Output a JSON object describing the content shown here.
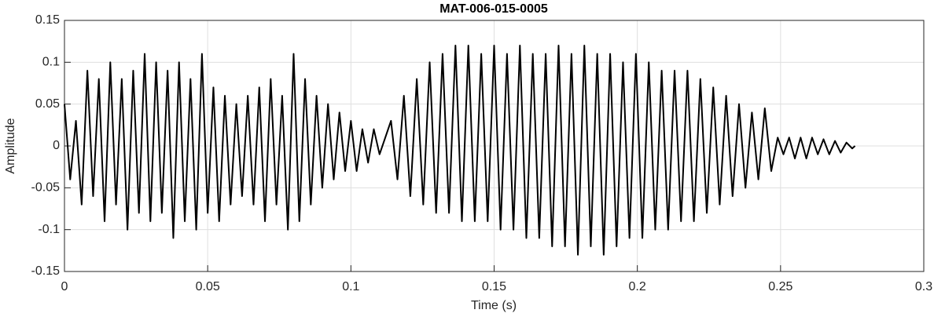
{
  "chart_data": {
    "type": "line",
    "title": "MAT-006-015-0005",
    "x_label": "Time (s)",
    "y_label": "Amplitude",
    "xlim": [
      0,
      0.3
    ],
    "xticks": [
      0,
      0.05,
      0.1,
      0.15,
      0.2,
      0.25,
      0.3
    ],
    "ylim": [
      -0.15,
      0.15
    ],
    "yticks": [
      -0.15,
      -0.1,
      -0.05,
      0,
      0.05,
      0.1,
      0.15
    ],
    "grid": true,
    "x": [
      0,
      0.002,
      0.004,
      0.006,
      0.008,
      0.01,
      0.012,
      0.014,
      0.016,
      0.018,
      0.02,
      0.022,
      0.024,
      0.026,
      0.028,
      0.03,
      0.032,
      0.034,
      0.036,
      0.038,
      0.04,
      0.042,
      0.044,
      0.046,
      0.048,
      0.05,
      0.052,
      0.054,
      0.056,
      0.058,
      0.06,
      0.062,
      0.064,
      0.066,
      0.068,
      0.07,
      0.072,
      0.074,
      0.076,
      0.078,
      0.08,
      0.082,
      0.084,
      0.086,
      0.088,
      0.09,
      0.092,
      0.094,
      0.096,
      0.098,
      0.1,
      0.102,
      0.104,
      0.106,
      0.108,
      0.11,
      0.114,
      0.11625,
      0.1185,
      0.12075,
      0.123,
      0.12525,
      0.1275,
      0.12975,
      0.132,
      0.13425,
      0.1365,
      0.13875,
      0.141,
      0.14325,
      0.1455,
      0.14775,
      0.15,
      0.15225,
      0.1545,
      0.15675,
      0.159,
      0.16125,
      0.1635,
      0.16575,
      0.168,
      0.17025,
      0.1725,
      0.17475,
      0.177,
      0.17925,
      0.1815,
      0.18375,
      0.186,
      0.18825,
      0.1905,
      0.19275,
      0.195,
      0.19725,
      0.1995,
      0.20175,
      0.204,
      0.20625,
      0.2085,
      0.21075,
      0.213,
      0.21525,
      0.2175,
      0.21975,
      0.222,
      0.22425,
      0.2265,
      0.22875,
      0.231,
      0.23325,
      0.2355,
      0.23775,
      0.24,
      0.24225,
      0.2445,
      0.24675,
      0.249,
      0.251,
      0.253,
      0.255,
      0.257,
      0.259,
      0.261,
      0.263,
      0.265,
      0.267,
      0.269,
      0.271,
      0.273,
      0.275,
      0.276
    ],
    "series": [
      {
        "name": "Amplitude",
        "color": "#000000",
        "values": [
          0.05,
          -0.04,
          0.03,
          -0.07,
          0.09,
          -0.06,
          0.08,
          -0.09,
          0.1,
          -0.07,
          0.08,
          -0.1,
          0.09,
          -0.08,
          0.11,
          -0.09,
          0.1,
          -0.08,
          0.09,
          -0.11,
          0.1,
          -0.09,
          0.08,
          -0.1,
          0.11,
          -0.08,
          0.07,
          -0.09,
          0.06,
          -0.07,
          0.05,
          -0.06,
          0.06,
          -0.07,
          0.07,
          -0.09,
          0.08,
          -0.07,
          0.06,
          -0.1,
          0.11,
          -0.09,
          0.08,
          -0.07,
          0.06,
          -0.05,
          0.05,
          -0.04,
          0.04,
          -0.03,
          0.03,
          -0.03,
          0.02,
          -0.02,
          0.02,
          -0.01,
          0.03,
          -0.04,
          0.06,
          -0.06,
          0.08,
          -0.07,
          0.1,
          -0.08,
          0.11,
          -0.08,
          0.12,
          -0.09,
          0.12,
          -0.09,
          0.11,
          -0.09,
          0.12,
          -0.1,
          0.11,
          -0.1,
          0.12,
          -0.11,
          0.11,
          -0.11,
          0.11,
          -0.12,
          0.12,
          -0.12,
          0.11,
          -0.13,
          0.12,
          -0.12,
          0.11,
          -0.13,
          0.11,
          -0.12,
          0.1,
          -0.11,
          0.11,
          -0.11,
          0.1,
          -0.1,
          0.09,
          -0.1,
          0.09,
          -0.09,
          0.09,
          -0.09,
          0.08,
          -0.08,
          0.07,
          -0.07,
          0.06,
          -0.06,
          0.05,
          -0.05,
          0.04,
          -0.04,
          0.045,
          -0.03,
          0.01,
          -0.01,
          0.01,
          -0.015,
          0.01,
          -0.015,
          0.01,
          -0.01,
          0.008,
          -0.01,
          0.006,
          -0.008,
          0.004,
          -0.003,
          0
        ]
      }
    ]
  }
}
